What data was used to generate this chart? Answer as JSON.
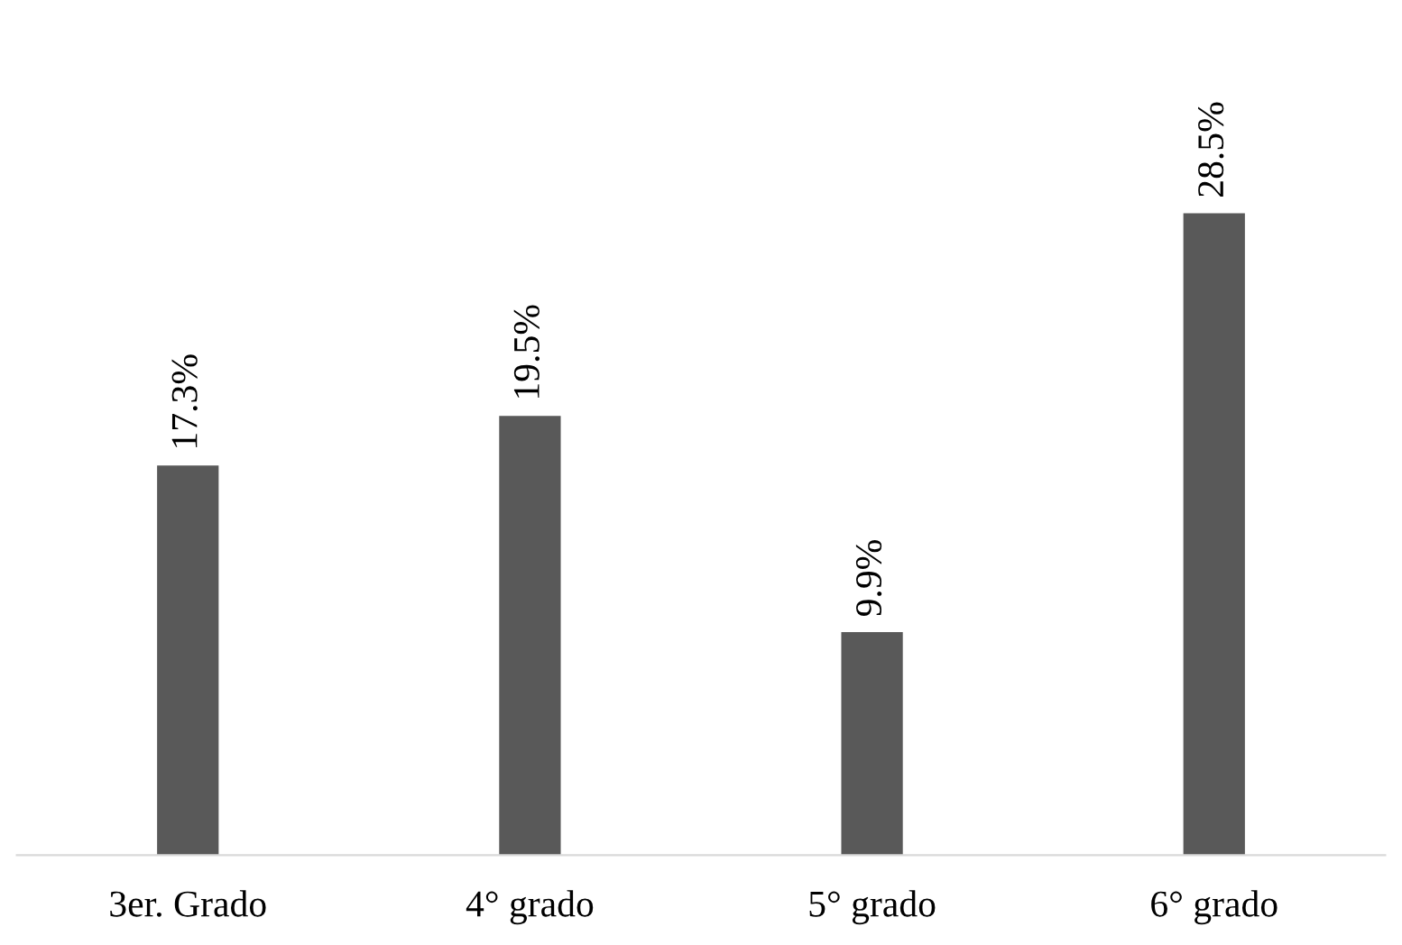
{
  "chart_data": {
    "type": "bar",
    "categories": [
      "3er. Grado",
      "4° grado",
      "5° grado",
      "6° grado"
    ],
    "values": [
      17.3,
      19.5,
      9.9,
      28.5
    ],
    "color": "#595959",
    "value_labels": [
      "17.3%",
      "19.5%",
      "9.9%",
      "28.5%"
    ],
    "grid": false,
    "legend": false
  }
}
